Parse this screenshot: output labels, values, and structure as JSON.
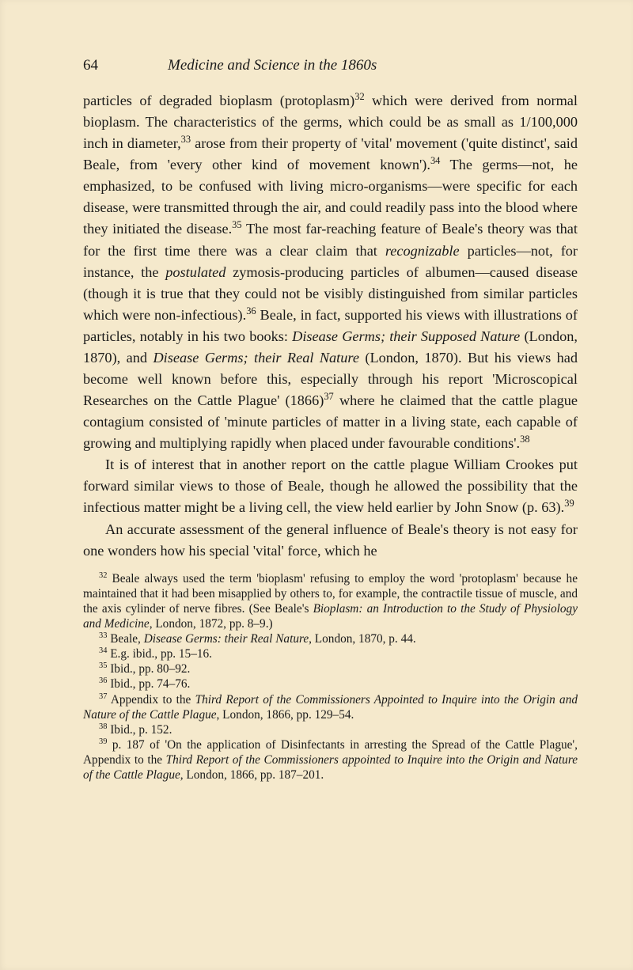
{
  "page_number": "64",
  "running_title": "Medicine and Science in the 1860s",
  "paragraphs": [
    {
      "indent": false,
      "html": "particles of degraded bioplasm (protoplasm)<sup>32</sup> which were derived from normal bioplasm. The characteristics of the germs, which could be as small as 1/100,000 inch in diameter,<sup>33</sup> arose from their property of 'vital' movement ('quite distinct', said Beale, from 'every other kind of movement known').<sup>34</sup> The germs—not, he emphasized, to be confused with living micro-organisms—were specific for each disease, were transmitted through the air, and could readily pass into the blood where they initiated the disease.<sup>35</sup> The most far-reaching feature of Beale's theory was that for the first time there was a clear claim that <em>recognizable</em> particles—not, for instance, the <em>postulated</em> zymosis-producing particles of albumen—caused disease (though it is true that they could not be visibly distinguished from similar particles which were non-infectious).<sup>36</sup> Beale, in fact, supported his views with illustrations of particles, notably in his two books: <em>Disease Germs; their Supposed Nature</em> (London, 1870), and <em>Disease Germs; their Real Nature</em> (London, 1870). But his views had become well known before this, especially through his report 'Microscopical Researches on the Cattle Plague' (1866)<sup>37</sup> where he claimed that the cattle plague contagium consisted of 'minute particles of matter in a living state, each capable of growing and multiplying rapidly when placed under favourable conditions'.<sup>38</sup>"
    },
    {
      "indent": true,
      "html": "It is of interest that in another report on the cattle plague William Crookes put forward similar views to those of Beale, though he allowed the possibility that the infectious matter might be a living cell, the view held earlier by John Snow (p. 63).<sup>39</sup>"
    },
    {
      "indent": true,
      "html": "An accurate assessment of the general influence of Beale's theory is not easy for one wonders how his special 'vital' force, which he"
    }
  ],
  "footnotes": [
    "<sup>32</sup> Beale always used the term 'bioplasm' refusing to employ the word 'protoplasm' because he maintained that it had been misapplied by others to, for example, the contractile tissue of muscle, and the axis cylinder of nerve fibres. (See Beale's <em>Bioplasm: an Introduction to the Study of Physiology and Medicine</em>, London, 1872, pp. 8–9.)",
    "<sup>33</sup> Beale, <em>Disease Germs: their Real Nature</em>, London, 1870, p. 44.",
    "<sup>34</sup> E.g. ibid., pp. 15–16.",
    "<sup>35</sup> Ibid., pp. 80–92.",
    "<sup>36</sup> Ibid., pp. 74–76.",
    "<sup>37</sup> Appendix to the <em>Third Report of the Commissioners Appointed to Inquire into the Origin and Nature of the Cattle Plague</em>, London, 1866, pp. 129–54.",
    "<sup>38</sup> Ibid., p. 152.",
    "<sup>39</sup> p. 187 of 'On the application of Disinfectants in arresting the Spread of the Cattle Plague', Appendix to the <em>Third Report of the Commissioners appointed to Inquire into the Origin and Nature of the Cattle Plague</em>, London, 1866, pp. 187–201."
  ]
}
